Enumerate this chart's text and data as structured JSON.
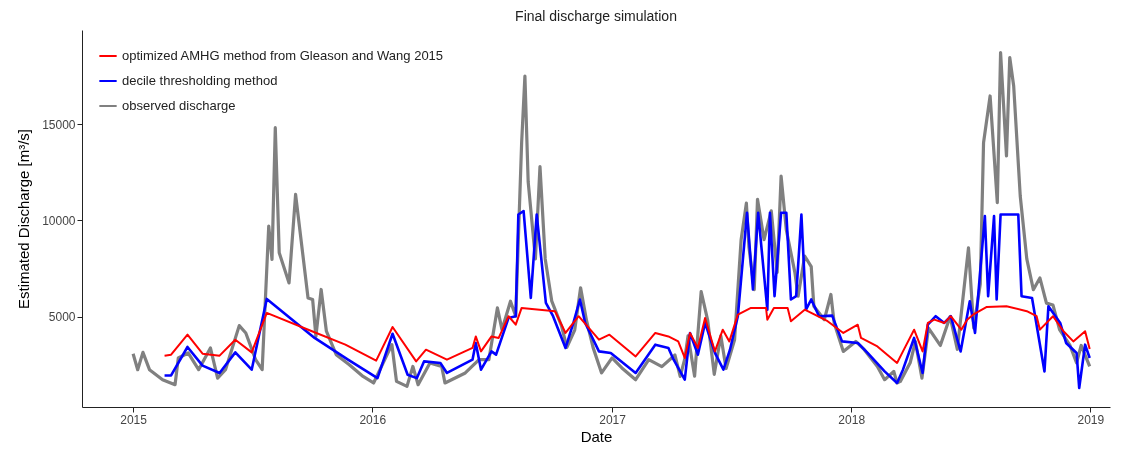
{
  "chart_data": {
    "type": "line",
    "title": "Final discharge simulation",
    "xlabel": "Date",
    "ylabel": "Estimated Discharge [m³/s]",
    "legend": "top left",
    "grid": false,
    "line_style": "solid",
    "marker": "none",
    "xlim": [
      "2014-10-15",
      "2019-01-31"
    ],
    "xticks": [
      "2015",
      "2016",
      "2017",
      "2018",
      "2019"
    ],
    "ylim": [
      300,
      19900
    ],
    "yticks": [
      5000,
      10000,
      15000
    ],
    "series": [
      {
        "name": "optimized AMHG method from Gleason and Wang 2015",
        "color": "#ff0000",
        "x": [
          "2015-02-18",
          "2015-02-28",
          "2015-03-25",
          "2015-04-17",
          "2015-05-13",
          "2015-06-06",
          "2015-07-01",
          "2015-07-24",
          "2015-10-01",
          "2015-11-21",
          "2016-01-07",
          "2016-02-01",
          "2016-03-08",
          "2016-03-23",
          "2016-04-24",
          "2016-06-02",
          "2016-06-07",
          "2016-06-15",
          "2016-07-01",
          "2016-07-12",
          "2016-07-27",
          "2016-08-07",
          "2016-08-16",
          "2016-10-06",
          "2016-10-22",
          "2016-11-11",
          "2016-12-12",
          "2016-12-28",
          "2017-02-06",
          "2017-03-08",
          "2017-03-28",
          "2017-04-12",
          "2017-04-22",
          "2017-04-30",
          "2017-05-12",
          "2017-05-23",
          "2017-06-07",
          "2017-06-19",
          "2017-06-29",
          "2017-07-12",
          "2017-08-01",
          "2017-08-24",
          "2017-08-26",
          "2017-09-05",
          "2017-09-26",
          "2017-10-01",
          "2017-10-22",
          "2017-11-01",
          "2017-11-26",
          "2017-12-20",
          "2018-01-11",
          "2018-01-16",
          "2018-02-10",
          "2018-02-25",
          "2018-03-12",
          "2018-03-21",
          "2018-04-07",
          "2018-04-20",
          "2018-04-28",
          "2018-05-08",
          "2018-05-23",
          "2018-06-02",
          "2018-06-18",
          "2018-06-27",
          "2018-07-06",
          "2018-07-27",
          "2018-08-26",
          "2018-09-26",
          "2018-10-11",
          "2018-10-16",
          "2018-11-05",
          "2018-11-21",
          "2018-12-06",
          "2018-12-24",
          "2018-12-31"
        ],
        "values": [
          2970,
          3020,
          4060,
          3070,
          2970,
          3800,
          3140,
          5190,
          4240,
          3540,
          2710,
          4460,
          2670,
          3280,
          2760,
          3370,
          3970,
          3190,
          3970,
          3890,
          5020,
          4580,
          5450,
          5280,
          4150,
          5020,
          3800,
          4060,
          2930,
          4150,
          3970,
          3710,
          2850,
          4150,
          3370,
          4930,
          3190,
          4320,
          3710,
          5100,
          5450,
          5450,
          4840,
          5450,
          5450,
          4760,
          5360,
          5190,
          4760,
          4150,
          4580,
          3890,
          3450,
          3020,
          2590,
          3190,
          4320,
          3190,
          4670,
          4840,
          4670,
          5020,
          4320,
          4840,
          5100,
          5500,
          5540,
          5280,
          5020,
          4320,
          5020,
          4240,
          3710,
          4240,
          3310
        ]
      },
      {
        "name": "decile thresholding method",
        "color": "#0000ff",
        "x": [
          "2015-02-18",
          "2015-02-28",
          "2015-03-25",
          "2015-04-17",
          "2015-05-13",
          "2015-06-06",
          "2015-07-01",
          "2015-07-24",
          "2015-10-05",
          "2015-11-25",
          "2016-01-09",
          "2016-02-01",
          "2016-02-24",
          "2016-03-09",
          "2016-03-20",
          "2016-04-14",
          "2016-04-24",
          "2016-06-02",
          "2016-06-07",
          "2016-06-15",
          "2016-07-01",
          "2016-07-08",
          "2016-07-27",
          "2016-08-07",
          "2016-08-11",
          "2016-08-19",
          "2016-08-30",
          "2016-09-08",
          "2016-09-22",
          "2016-10-03",
          "2016-10-22",
          "2016-11-03",
          "2016-11-13",
          "2016-11-21",
          "2016-12-12",
          "2016-12-30",
          "2017-02-06",
          "2017-03-08",
          "2017-03-28",
          "2017-04-05",
          "2017-04-22",
          "2017-04-30",
          "2017-05-12",
          "2017-05-23",
          "2017-06-07",
          "2017-06-20",
          "2017-06-30",
          "2017-07-12",
          "2017-07-26",
          "2017-08-04",
          "2017-08-12",
          "2017-08-26",
          "2017-08-30",
          "2017-09-06",
          "2017-09-16",
          "2017-09-24",
          "2017-10-01",
          "2017-10-09",
          "2017-10-17",
          "2017-10-24",
          "2017-11-01",
          "2017-11-13",
          "2017-12-03",
          "2017-12-18",
          "2018-01-11",
          "2018-01-26",
          "2018-02-21",
          "2018-03-12",
          "2018-03-21",
          "2018-04-07",
          "2018-04-20",
          "2018-04-28",
          "2018-05-10",
          "2018-05-23",
          "2018-06-02",
          "2018-06-17",
          "2018-07-01",
          "2018-07-09",
          "2018-07-24",
          "2018-07-29",
          "2018-08-07",
          "2018-08-11",
          "2018-08-17",
          "2018-09-13",
          "2018-09-18",
          "2018-10-04",
          "2018-10-23",
          "2018-10-29",
          "2018-11-16",
          "2018-11-25",
          "2018-12-11",
          "2018-12-15",
          "2018-12-24",
          "2018-12-31"
        ],
        "values": [
          1940,
          1940,
          3420,
          2450,
          2070,
          3140,
          2240,
          5920,
          3890,
          2760,
          1800,
          4110,
          1980,
          1800,
          2670,
          2590,
          2070,
          2760,
          3630,
          2240,
          3190,
          3020,
          4930,
          5020,
          10310,
          10490,
          5970,
          10310,
          5710,
          5020,
          3370,
          4670,
          5890,
          4670,
          3190,
          3110,
          2070,
          3540,
          3370,
          2760,
          1720,
          4150,
          3020,
          4670,
          3110,
          2240,
          3280,
          5020,
          10400,
          6410,
          10400,
          5360,
          10400,
          6060,
          10400,
          10400,
          5890,
          6060,
          10310,
          5360,
          5890,
          5020,
          5050,
          3710,
          3630,
          3110,
          2150,
          1550,
          2240,
          3890,
          2070,
          4580,
          5020,
          4670,
          5020,
          3190,
          5800,
          4150,
          10230,
          6060,
          10230,
          5890,
          10310,
          10310,
          6060,
          5970,
          2150,
          5540,
          4670,
          3630,
          3110,
          1290,
          3540,
          2850
        ]
      },
      {
        "name": "observed discharge",
        "color": "#808080",
        "x": [
          "2015-01-01",
          "2015-01-08",
          "2015-01-16",
          "2015-01-26",
          "2015-02-15",
          "2015-03-06",
          "2015-03-11",
          "2015-03-26",
          "2015-04-11",
          "2015-04-29",
          "2015-05-10",
          "2015-05-22",
          "2015-06-12",
          "2015-06-22",
          "2015-07-07",
          "2015-07-17",
          "2015-07-27",
          "2015-08-01",
          "2015-08-06",
          "2015-08-12",
          "2015-08-27",
          "2015-09-06",
          "2015-09-25",
          "2015-10-02",
          "2015-10-07",
          "2015-10-15",
          "2015-10-23",
          "2015-11-07",
          "2015-11-27",
          "2015-12-18",
          "2016-01-03",
          "2016-01-31",
          "2016-02-07",
          "2016-02-23",
          "2016-03-03",
          "2016-03-11",
          "2016-03-29",
          "2016-04-16",
          "2016-04-21",
          "2016-05-22",
          "2016-06-12",
          "2016-06-27",
          "2016-07-10",
          "2016-07-17",
          "2016-07-30",
          "2016-08-07",
          "2016-08-16",
          "2016-08-21",
          "2016-08-26",
          "2016-09-06",
          "2016-09-13",
          "2016-09-21",
          "2016-10-01",
          "2016-10-16",
          "2016-10-24",
          "2016-11-05",
          "2016-11-14",
          "2016-11-23",
          "2016-12-03",
          "2016-12-16",
          "2017-01-01",
          "2017-01-16",
          "2017-02-06",
          "2017-02-26",
          "2017-03-18",
          "2017-04-07",
          "2017-04-15",
          "2017-04-22",
          "2017-04-27",
          "2017-05-07",
          "2017-05-17",
          "2017-05-27",
          "2017-06-06",
          "2017-06-16",
          "2017-06-24",
          "2017-07-07",
          "2017-07-17",
          "2017-07-25",
          "2017-07-29",
          "2017-08-06",
          "2017-08-11",
          "2017-08-21",
          "2017-09-01",
          "2017-09-10",
          "2017-09-16",
          "2017-09-24",
          "2017-10-07",
          "2017-10-12",
          "2017-10-22",
          "2017-11-01",
          "2017-11-05",
          "2017-11-21",
          "2017-12-01",
          "2017-12-06",
          "2017-12-20",
          "2018-01-08",
          "2018-01-21",
          "2018-02-10",
          "2018-02-21",
          "2018-03-07",
          "2018-03-12",
          "2018-03-17",
          "2018-04-01",
          "2018-04-09",
          "2018-04-19",
          "2018-04-29",
          "2018-05-17",
          "2018-06-01",
          "2018-06-12",
          "2018-06-29",
          "2018-07-07",
          "2018-07-17",
          "2018-07-22",
          "2018-08-01",
          "2018-08-12",
          "2018-08-17",
          "2018-08-26",
          "2018-08-31",
          "2018-09-06",
          "2018-09-16",
          "2018-09-26",
          "2018-10-06",
          "2018-10-16",
          "2018-10-26",
          "2018-11-05",
          "2018-11-15",
          "2018-12-01",
          "2018-12-11",
          "2018-12-18",
          "2018-12-31"
        ],
        "values": [
          3070,
          2240,
          3140,
          2240,
          1720,
          1460,
          2850,
          3110,
          2240,
          3370,
          1800,
          2240,
          4530,
          4150,
          2760,
          2240,
          9700,
          7970,
          14820,
          8320,
          6750,
          11350,
          5970,
          5890,
          3970,
          6410,
          4240,
          3020,
          2500,
          1890,
          1550,
          3540,
          1630,
          1370,
          2410,
          1460,
          2590,
          2410,
          1550,
          2070,
          2760,
          2760,
          5450,
          4320,
          5800,
          5020,
          14040,
          17500,
          12000,
          8000,
          12800,
          8000,
          5800,
          4500,
          3400,
          4300,
          6500,
          4800,
          3400,
          2070,
          2850,
          2330,
          1720,
          2760,
          2400,
          3000,
          1890,
          2800,
          4000,
          1900,
          6300,
          4800,
          2000,
          4000,
          2300,
          3800,
          9000,
          10900,
          8600,
          6400,
          11100,
          9000,
          10500,
          7300,
          12300,
          9500,
          7300,
          6060,
          8150,
          7600,
          5540,
          4840,
          6150,
          4670,
          3190,
          3710,
          3280,
          2410,
          1720,
          2150,
          1550,
          1630,
          2600,
          3700,
          1800,
          4400,
          3500,
          5000,
          3300,
          8570,
          4400,
          6700,
          14040,
          16470,
          10920,
          18730,
          13350,
          18470,
          16990,
          11270,
          8000,
          6400,
          7010,
          5700,
          5600,
          4320,
          3500,
          2590,
          3500,
          2410
        ]
      }
    ]
  }
}
